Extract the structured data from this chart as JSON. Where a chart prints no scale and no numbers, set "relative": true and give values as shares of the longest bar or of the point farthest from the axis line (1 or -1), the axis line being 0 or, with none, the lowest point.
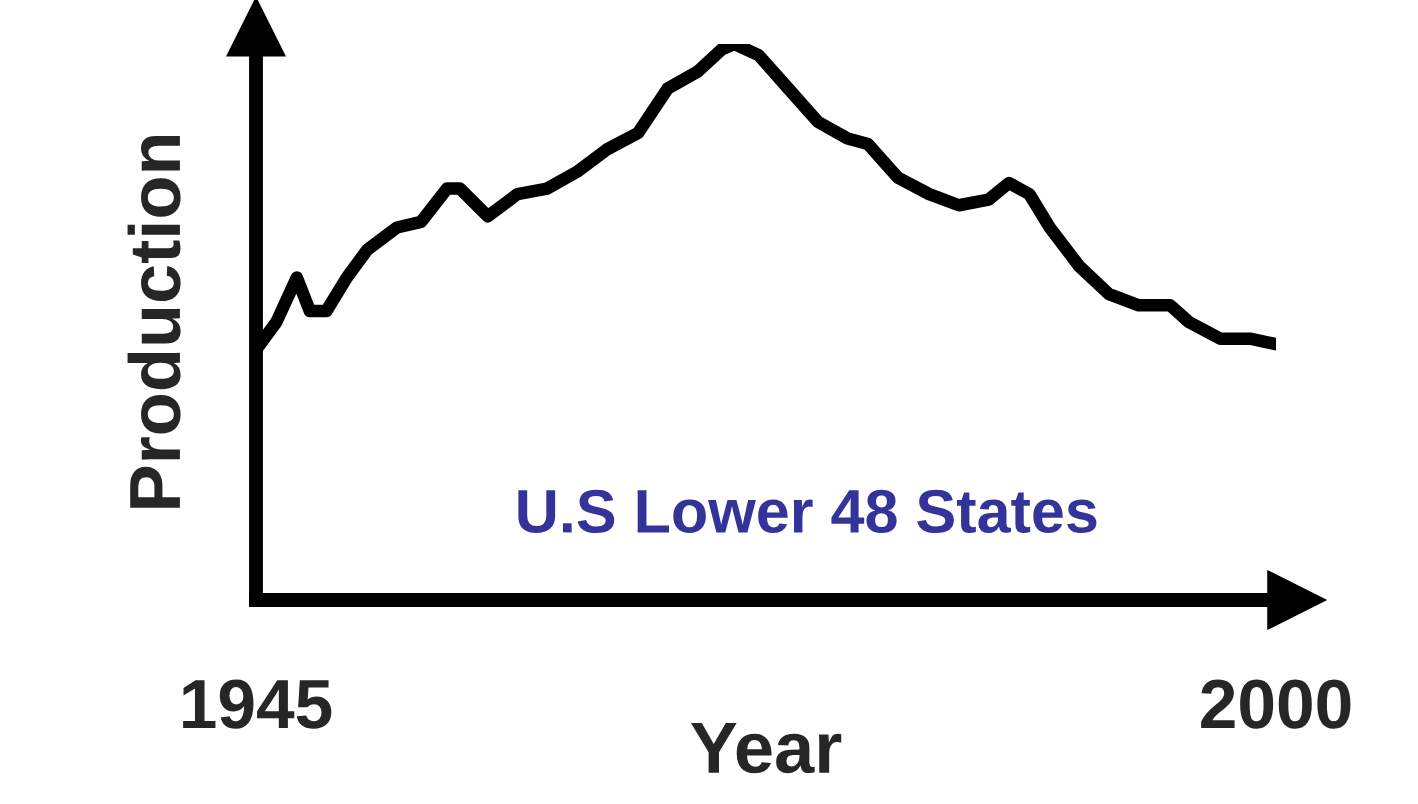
{
  "chart_data": {
    "type": "line",
    "relative": true,
    "xlabel": "Year",
    "ylabel": "Production",
    "x": [
      1945.0,
      1946.1,
      1947.2,
      1947.9,
      1948.8,
      1949.9,
      1951.0,
      1952.6,
      1953.9,
      1955.3,
      1956.0,
      1957.5,
      1959.1,
      1960.7,
      1962.3,
      1963.9,
      1965.6,
      1967.2,
      1968.8,
      1970.1,
      1970.8,
      1972.1,
      1973.7,
      1975.3,
      1976.9,
      1978.0,
      1979.6,
      1981.3,
      1982.9,
      1984.5,
      1985.6,
      1986.7,
      1987.8,
      1989.4,
      1991.0,
      1992.6,
      1994.3,
      1995.3,
      1997.0,
      1998.6,
      2000.0
    ],
    "series": [
      {
        "color": "#000000",
        "values": [
          0.45,
          0.5,
          0.58,
          0.52,
          0.52,
          0.58,
          0.63,
          0.67,
          0.68,
          0.74,
          0.74,
          0.69,
          0.73,
          0.74,
          0.77,
          0.81,
          0.84,
          0.92,
          0.95,
          0.99,
          1.0,
          0.98,
          0.92,
          0.86,
          0.83,
          0.82,
          0.76,
          0.73,
          0.71,
          0.72,
          0.75,
          0.73,
          0.67,
          0.6,
          0.55,
          0.53,
          0.53,
          0.5,
          0.47,
          0.47,
          0.46
        ]
      }
    ],
    "xlim": [
      1945,
      2000
    ],
    "xticks": [
      1945,
      2000
    ],
    "annotations": [
      "U.S Lower 48 States"
    ],
    "grid": false,
    "legend": false,
    "marker": "none",
    "line_style": "solid"
  }
}
